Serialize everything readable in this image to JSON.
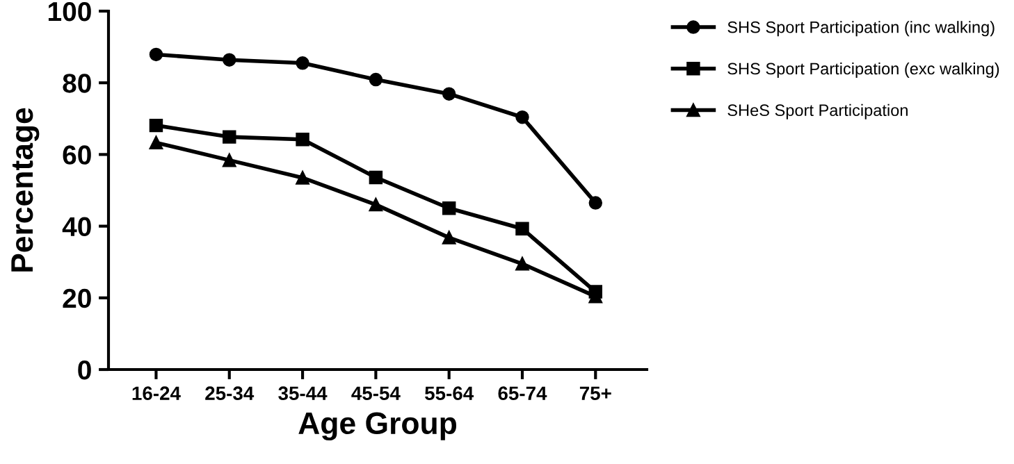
{
  "chart_data": {
    "type": "line",
    "xlabel": "Age Group",
    "ylabel": "Percentage",
    "categories": [
      "16-24",
      "25-34",
      "35-44",
      "45-54",
      "55-64",
      "65-74",
      "75+"
    ],
    "series": [
      {
        "name": "SHS Sport Participation (inc walking)",
        "color": "#000000",
        "marker": "circle",
        "values": [
          87.9,
          86.4,
          85.5,
          80.9,
          76.9,
          70.4,
          46.5
        ]
      },
      {
        "name": "SHS Sport Participation (exc walking)",
        "color": "#000000",
        "marker": "square",
        "values": [
          68.1,
          64.9,
          64.2,
          53.6,
          45.0,
          39.3,
          21.7
        ]
      },
      {
        "name": "SHeS Sport Participation",
        "color": "#000000",
        "marker": "triangle",
        "values": [
          63.3,
          58.4,
          53.5,
          46.0,
          36.8,
          29.5,
          20.4
        ]
      }
    ],
    "ylim": [
      0,
      100
    ],
    "yticks": [
      0,
      20,
      40,
      60,
      80,
      100
    ],
    "grid": false,
    "legend": "top right",
    "line_style": "solid"
  }
}
